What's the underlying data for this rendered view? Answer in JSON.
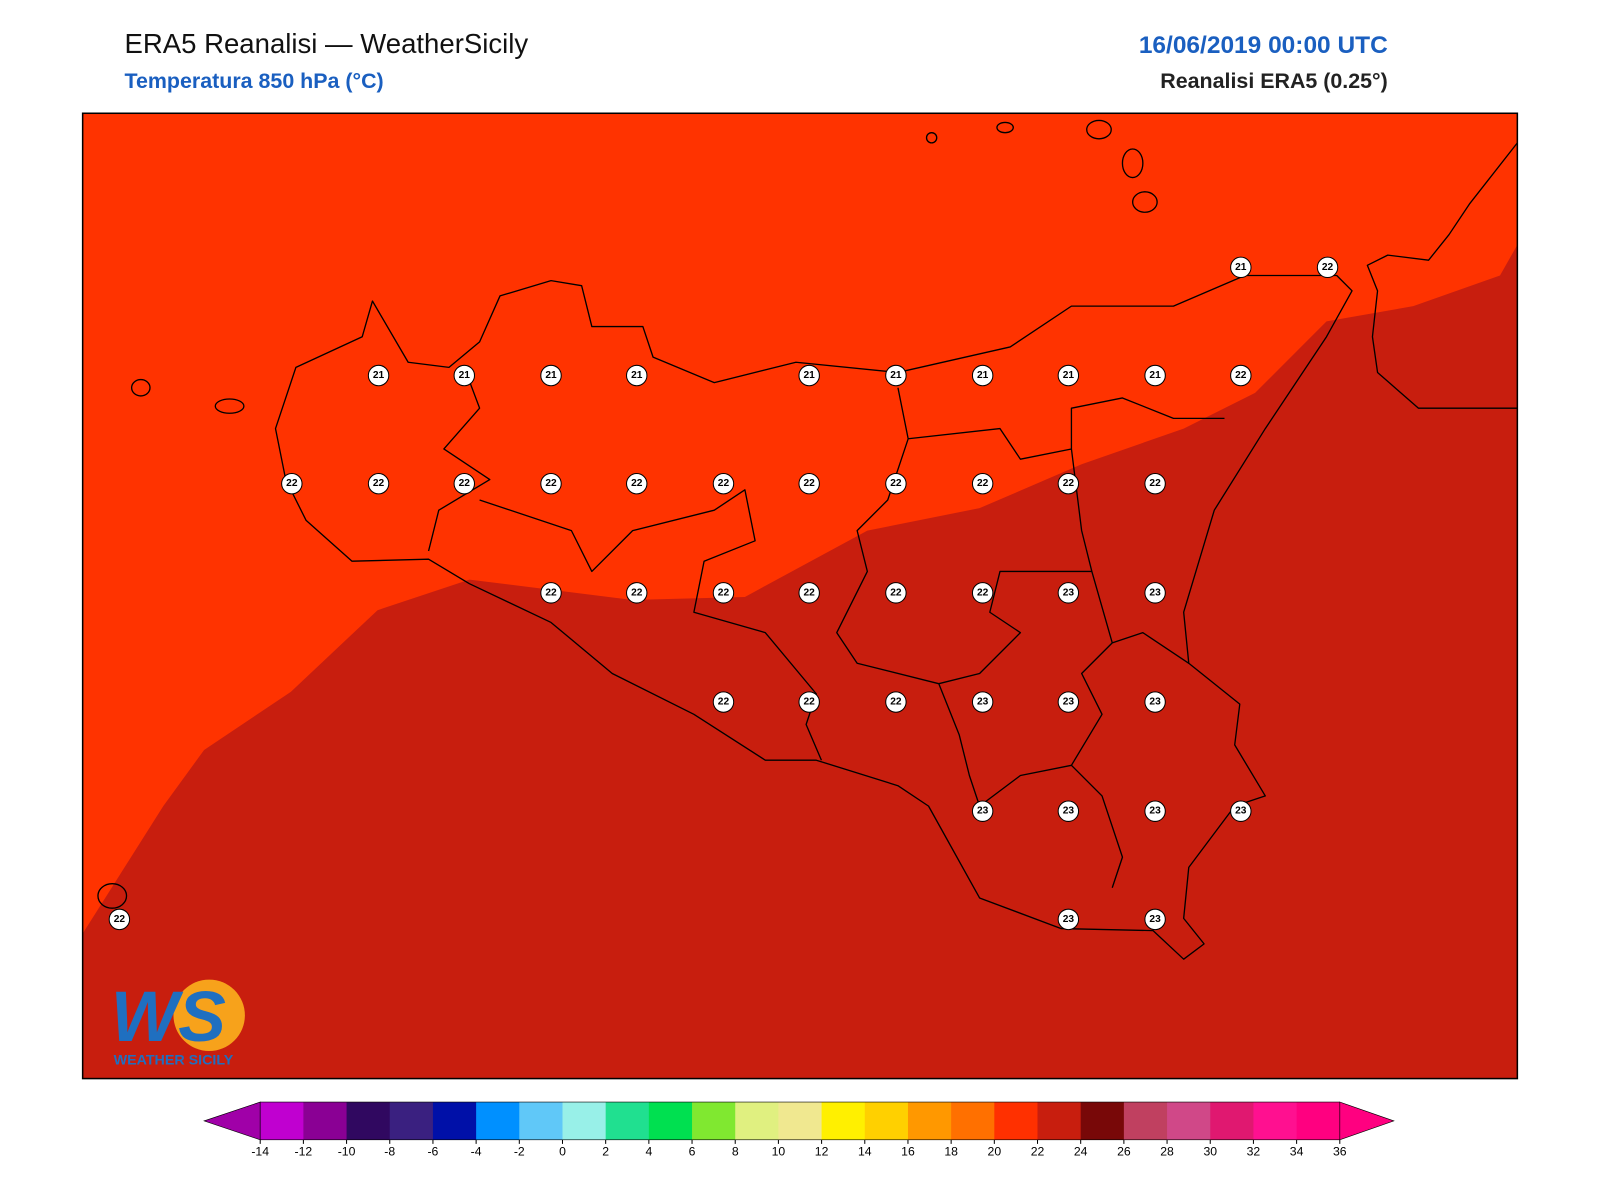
{
  "header": {
    "title": "ERA5 Reanalisi — WeatherSicily",
    "subtitle": "Temperatura 850 hPa (°C)",
    "datetime": "16/06/2019 00:00 UTC",
    "source": "Reanalisi ERA5 (0.25°)"
  },
  "stations": [
    21,
    22,
    21,
    21,
    21,
    21,
    21,
    21,
    21,
    21,
    21,
    22,
    22,
    22,
    22,
    22,
    22,
    22,
    22,
    22,
    22,
    22,
    22,
    22,
    22,
    22,
    22,
    22,
    22,
    23,
    23,
    22,
    22,
    22,
    23,
    23,
    23,
    23,
    23,
    23,
    23,
    22,
    23,
    23
  ],
  "logo": {
    "mark": "WS",
    "text": "WEATHER SICILY"
  },
  "colorbar": {
    "ticks": [
      -14,
      -12,
      -10,
      -8,
      -6,
      -4,
      -2,
      0,
      2,
      4,
      6,
      8,
      10,
      12,
      14,
      16,
      18,
      20,
      22,
      24,
      26,
      28,
      30,
      32,
      34,
      36
    ],
    "under_color": "#a000a8",
    "over_color": "#ff0080",
    "colors": [
      "#c000d0",
      "#8a0094",
      "#300860",
      "#3a2080",
      "#0010a8",
      "#0090ff",
      "#60c8f8",
      "#98f0e8",
      "#20e090",
      "#00e050",
      "#80e830",
      "#e0f080",
      "#f0e890",
      "#fff000",
      "#ffd000",
      "#ff9800",
      "#ff7000",
      "#ff3000",
      "#c81e0e",
      "#780808",
      "#c04060",
      "#d04888",
      "#e01870",
      "#ff1090",
      "#ff0080"
    ]
  }
}
